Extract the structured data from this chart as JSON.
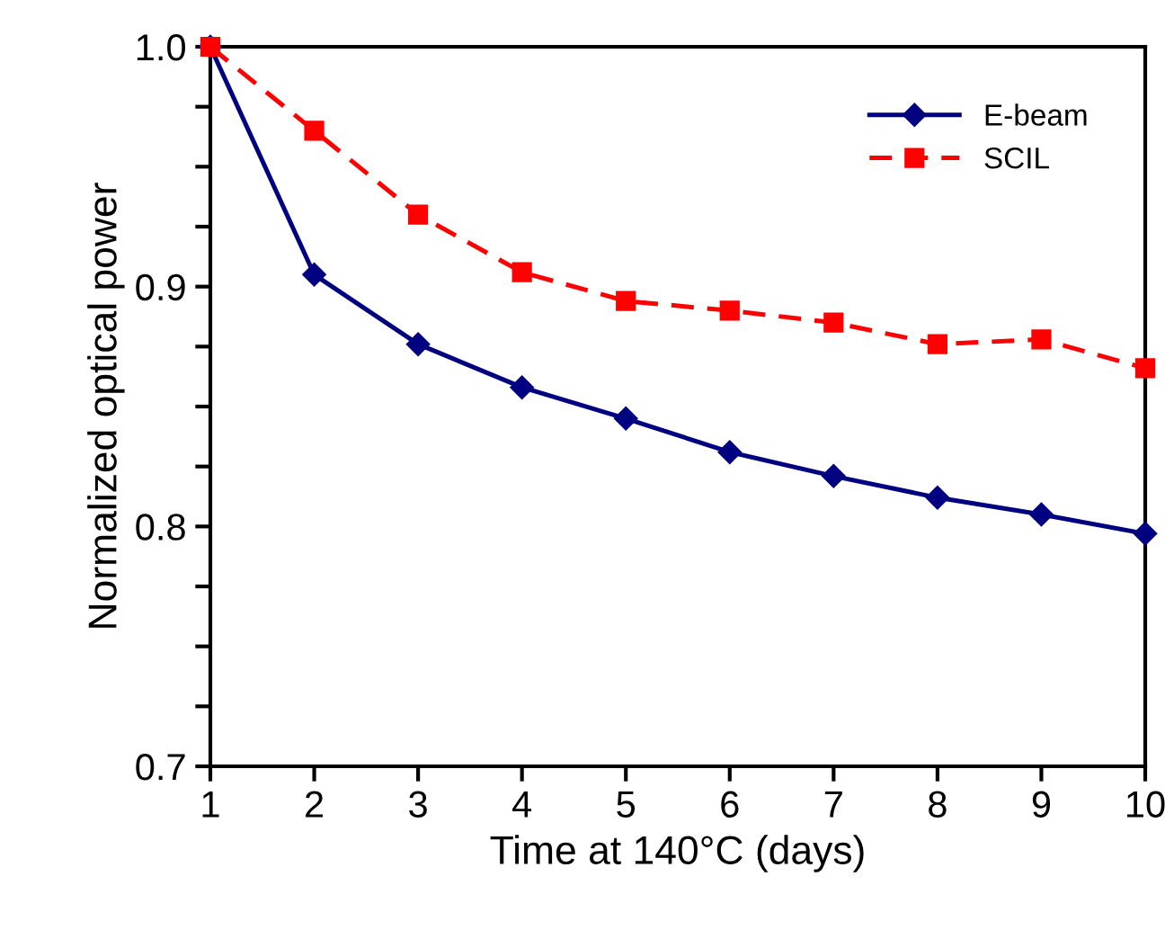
{
  "chart_data": {
    "type": "line",
    "xlabel": "Time at 140°C (days)",
    "ylabel": "Normalized optical power",
    "x": [
      1,
      2,
      3,
      4,
      5,
      6,
      7,
      8,
      9,
      10
    ],
    "series": [
      {
        "name": "E-beam",
        "color": "#000080",
        "marker": "diamond",
        "line_style": "solid",
        "values": [
          1.0,
          0.905,
          0.876,
          0.858,
          0.845,
          0.831,
          0.821,
          0.812,
          0.805,
          0.797
        ]
      },
      {
        "name": "SCIL",
        "color": "#ff0000",
        "marker": "square",
        "line_style": "dashed",
        "values": [
          1.0,
          0.965,
          0.93,
          0.906,
          0.894,
          0.89,
          0.885,
          0.876,
          0.878,
          0.866
        ]
      }
    ],
    "xlim": [
      1,
      10
    ],
    "xticks": [
      1,
      2,
      3,
      4,
      5,
      6,
      7,
      8,
      9,
      10
    ],
    "ylim": [
      0.7,
      1.0
    ],
    "yticks": [
      {
        "value": 0.7,
        "label": "0.7"
      },
      {
        "value": 0.725,
        "label": null
      },
      {
        "value": 0.75,
        "label": null
      },
      {
        "value": 0.775,
        "label": null
      },
      {
        "value": 0.8,
        "label": "0.8"
      },
      {
        "value": 0.825,
        "label": null
      },
      {
        "value": 0.85,
        "label": null
      },
      {
        "value": 0.875,
        "label": null
      },
      {
        "value": 0.9,
        "label": "0.9"
      },
      {
        "value": 0.925,
        "label": null
      },
      {
        "value": 0.95,
        "label": null
      },
      {
        "value": 0.975,
        "label": null
      },
      {
        "value": 1.0,
        "label": "1.0"
      }
    ],
    "grid": false,
    "legend": "top right"
  }
}
